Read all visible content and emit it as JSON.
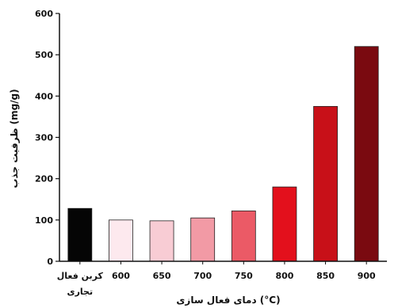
{
  "chart_data": {
    "type": "bar",
    "title": "",
    "xlabel": "دمای فعال سازی (°C)",
    "ylabel": "ظرفیت جذب (mg/g)",
    "ylim": [
      0,
      600
    ],
    "yticks": [
      0,
      100,
      200,
      300,
      400,
      500,
      600
    ],
    "grid": false,
    "categories": [
      "کربن فعال تجاری",
      "600",
      "650",
      "700",
      "750",
      "800",
      "850",
      "900"
    ],
    "values": [
      128,
      100,
      98,
      105,
      122,
      180,
      375,
      520
    ],
    "colors": [
      "#050505",
      "#fde9ee",
      "#f8ccd4",
      "#f29aa5",
      "#eb5a66",
      "#e3101c",
      "#c81018",
      "#7a0a10"
    ]
  }
}
